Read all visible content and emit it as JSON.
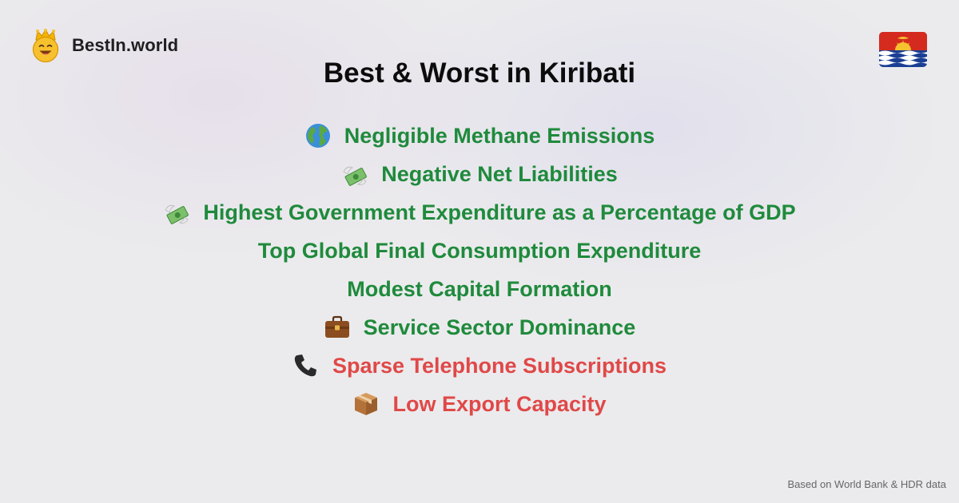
{
  "brand": {
    "name": "BestIn.world",
    "logo_icon": "crowned-smiley-icon"
  },
  "flag": {
    "icon": "kiribati-flag-icon",
    "colors": {
      "red": "#d52b1e",
      "blue": "#1b3f94",
      "yellow": "#f6c22f",
      "white": "#ffffff"
    }
  },
  "title": "Best & Worst in Kiribati",
  "colors": {
    "best": "#1f8a3c",
    "worst": "#e04848"
  },
  "facts": [
    {
      "text": "Negligible Methane Emissions",
      "kind": "best",
      "icon": "globe-icon"
    },
    {
      "text": "Negative Net Liabilities",
      "kind": "best",
      "icon": "money-wings-icon"
    },
    {
      "text": "Highest Government Expenditure as a Percentage of GDP",
      "kind": "best",
      "icon": "money-wings-icon"
    },
    {
      "text": "Top Global Final Consumption Expenditure",
      "kind": "best",
      "icon": ""
    },
    {
      "text": "Modest Capital Formation",
      "kind": "best",
      "icon": ""
    },
    {
      "text": "Service Sector Dominance",
      "kind": "best",
      "icon": "briefcase-icon"
    },
    {
      "text": "Sparse Telephone Subscriptions",
      "kind": "worst",
      "icon": "telephone-receiver-icon"
    },
    {
      "text": "Low Export Capacity",
      "kind": "worst",
      "icon": "package-icon"
    }
  ],
  "footer": "Based on World Bank & HDR data"
}
